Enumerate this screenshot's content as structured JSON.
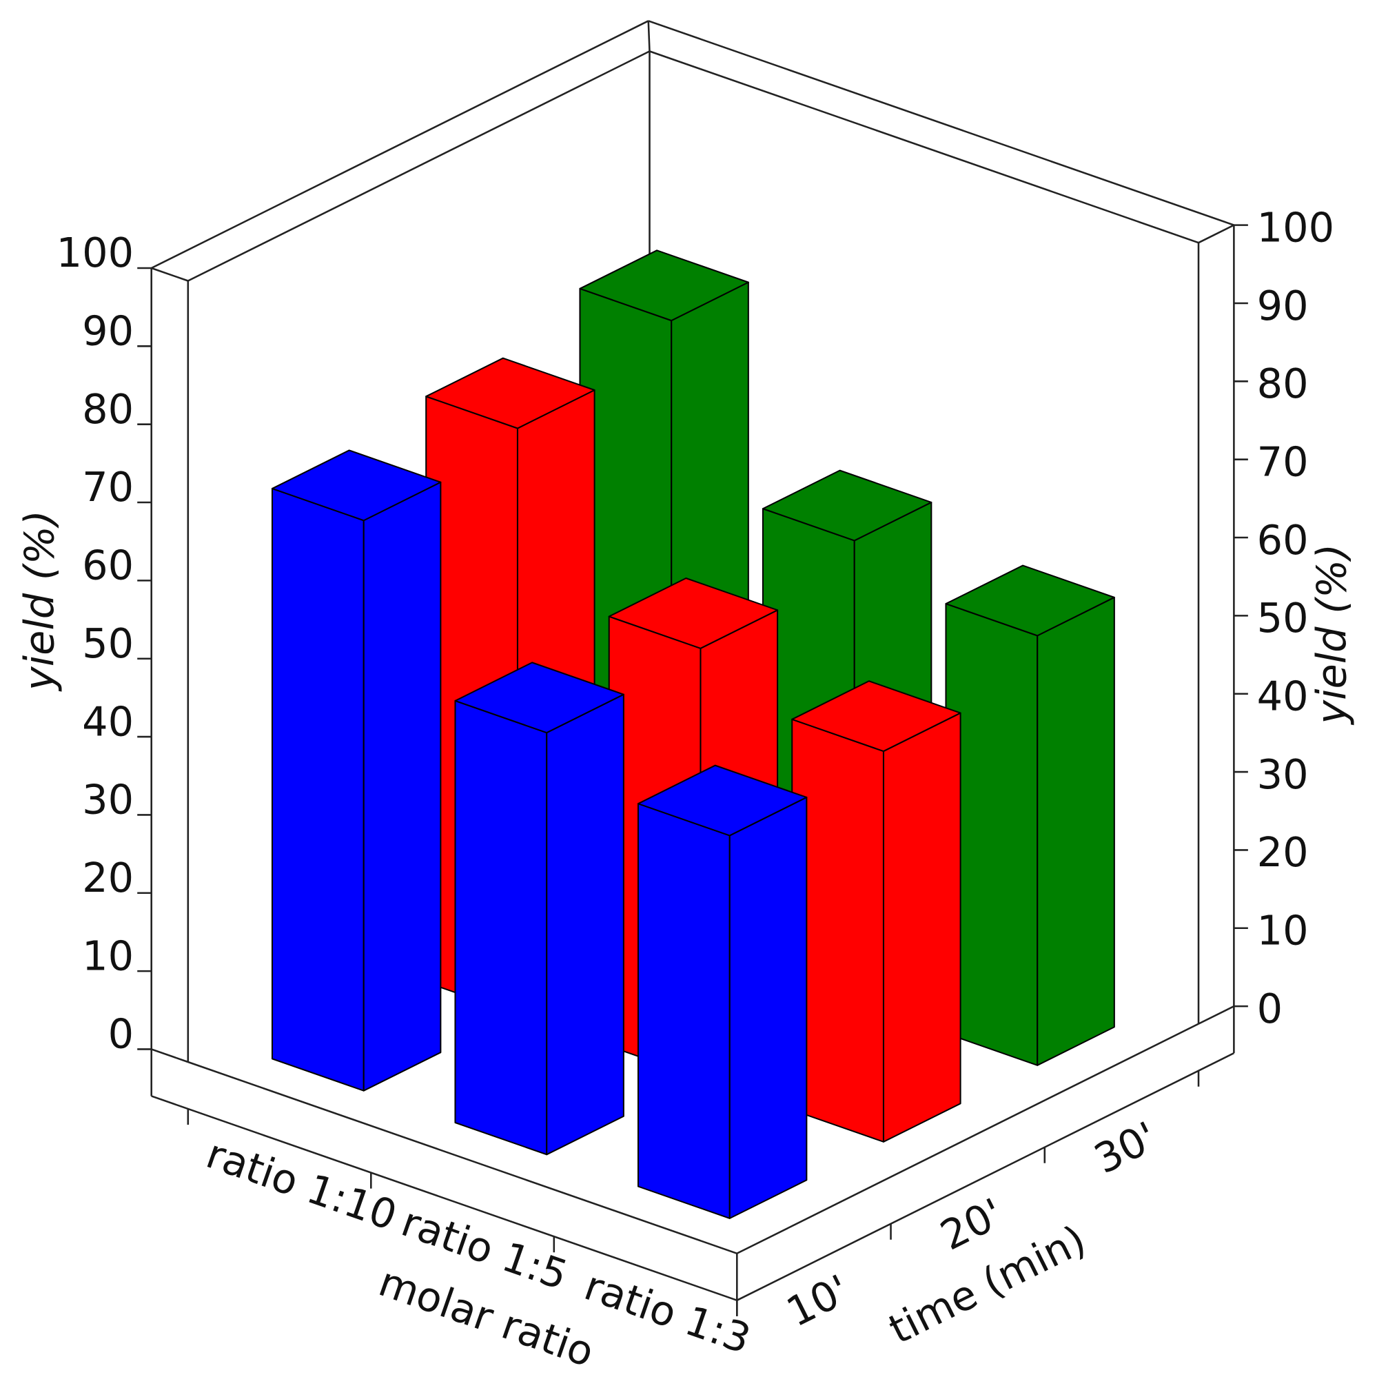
{
  "chart_data": {
    "type": "bar3d",
    "ylabel": "yield (%)",
    "xlabel": "molar ratio",
    "depth_label": "time (min)",
    "categories": [
      "ratio 1:10",
      "ratio 1:5",
      "ratio 1:3"
    ],
    "series": [
      {
        "name": "10'",
        "color": "#0000ff",
        "values": [
          73,
          54,
          49
        ]
      },
      {
        "name": "20'",
        "color": "#ff0000",
        "values": [
          75,
          55,
          50
        ]
      },
      {
        "name": "30'",
        "color": "#008000",
        "values": [
          79,
          59,
          55
        ]
      }
    ],
    "ylim": [
      0,
      100
    ],
    "yticks": [
      0,
      10,
      20,
      30,
      40,
      50,
      60,
      70,
      80,
      90,
      100
    ]
  }
}
